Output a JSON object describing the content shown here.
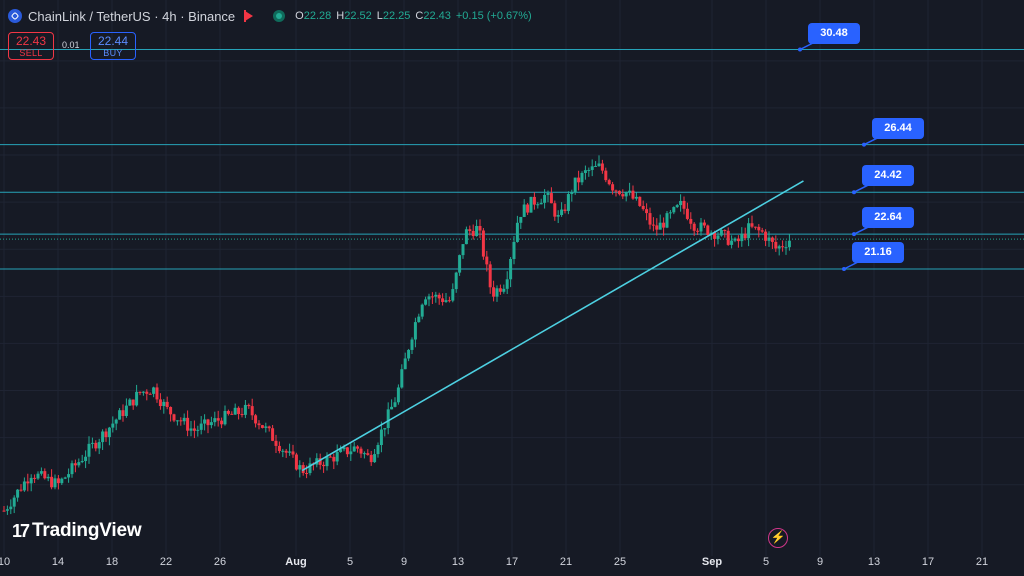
{
  "header": {
    "title": "ChainLink / TetherUS · 4h · Binance",
    "ohlc": [
      {
        "k": "O",
        "v": "22.28"
      },
      {
        "k": "H",
        "v": "22.52"
      },
      {
        "k": "L",
        "v": "22.25"
      },
      {
        "k": "C",
        "v": "22.43"
      }
    ],
    "change": "+0.15 (+0.67%)"
  },
  "trade": {
    "sell_price": "22.43",
    "sell_label": "SELL",
    "buy_price": "22.44",
    "buy_label": "BUY",
    "spread": "0.01"
  },
  "brand": "TradingView",
  "colors": {
    "background": "#161a25",
    "up": "#22ab94",
    "down": "#f23645",
    "level_line": "#26a3b8",
    "trendline": "#4dd0e1",
    "callout": "#2962ff"
  },
  "chart_data": {
    "type": "candlestick",
    "symbol": "ChainLink / TetherUS",
    "interval": "4h",
    "exchange": "Binance",
    "x_tick_labels": [
      "10",
      "14",
      "18",
      "22",
      "26",
      "Aug",
      "5",
      "9",
      "13",
      "17",
      "21",
      "25",
      "Sep",
      "5",
      "9",
      "13",
      "17",
      "21"
    ],
    "close_path": [
      [
        "10",
        10.9
      ],
      [
        "12",
        12.5
      ],
      [
        "14",
        12.0
      ],
      [
        "16",
        13.3
      ],
      [
        "18",
        14.6
      ],
      [
        "20",
        15.9
      ],
      [
        "21",
        16.1
      ],
      [
        "22",
        15.2
      ],
      [
        "24",
        14.3
      ],
      [
        "26",
        14.8
      ],
      [
        "28",
        15.2
      ],
      [
        "30",
        13.9
      ],
      [
        "Aug 1",
        12.6
      ],
      [
        "Aug 3",
        13.1
      ],
      [
        "Aug 5",
        13.6
      ],
      [
        "Aug 6",
        13.1
      ],
      [
        "Aug 8",
        15.8
      ],
      [
        "Aug 9",
        18.2
      ],
      [
        "Aug 10",
        20.1
      ],
      [
        "Aug 12",
        19.8
      ],
      [
        "Aug 13",
        22.7
      ],
      [
        "Aug 14",
        22.9
      ],
      [
        "Aug 15",
        20.1
      ],
      [
        "Aug 16",
        20.6
      ],
      [
        "Aug 17",
        23.5
      ],
      [
        "Aug 18",
        24.0
      ],
      [
        "Aug 19",
        24.3
      ],
      [
        "Aug 20",
        23.2
      ],
      [
        "Aug 21",
        24.7
      ],
      [
        "Aug 22",
        25.3
      ],
      [
        "Aug 23",
        25.5
      ],
      [
        "Aug 24",
        24.6
      ],
      [
        "Aug 25",
        24.4
      ],
      [
        "Aug 26",
        23.8
      ],
      [
        "Aug 27",
        22.8
      ],
      [
        "Aug 28",
        23.3
      ],
      [
        "Aug 29",
        23.9
      ],
      [
        "Aug 30",
        23.0
      ],
      [
        "Sep 1",
        22.6
      ],
      [
        "Sep 2",
        22.2
      ],
      [
        "Sep 3",
        22.9
      ],
      [
        "Sep 4",
        22.7
      ],
      [
        "Sep 5",
        22.0
      ],
      [
        "Sep 6",
        22.43
      ]
    ],
    "horizontal_levels": [
      30.48,
      26.44,
      24.42,
      22.64,
      21.16
    ],
    "level_labels": [
      "30.48",
      "26.44",
      "24.42",
      "22.64",
      "21.16"
    ],
    "current_price": 22.43,
    "trendline": {
      "from": [
        "Aug 1",
        12.6
      ],
      "to": [
        "Sep 7",
        24.9
      ]
    },
    "grid": true
  }
}
